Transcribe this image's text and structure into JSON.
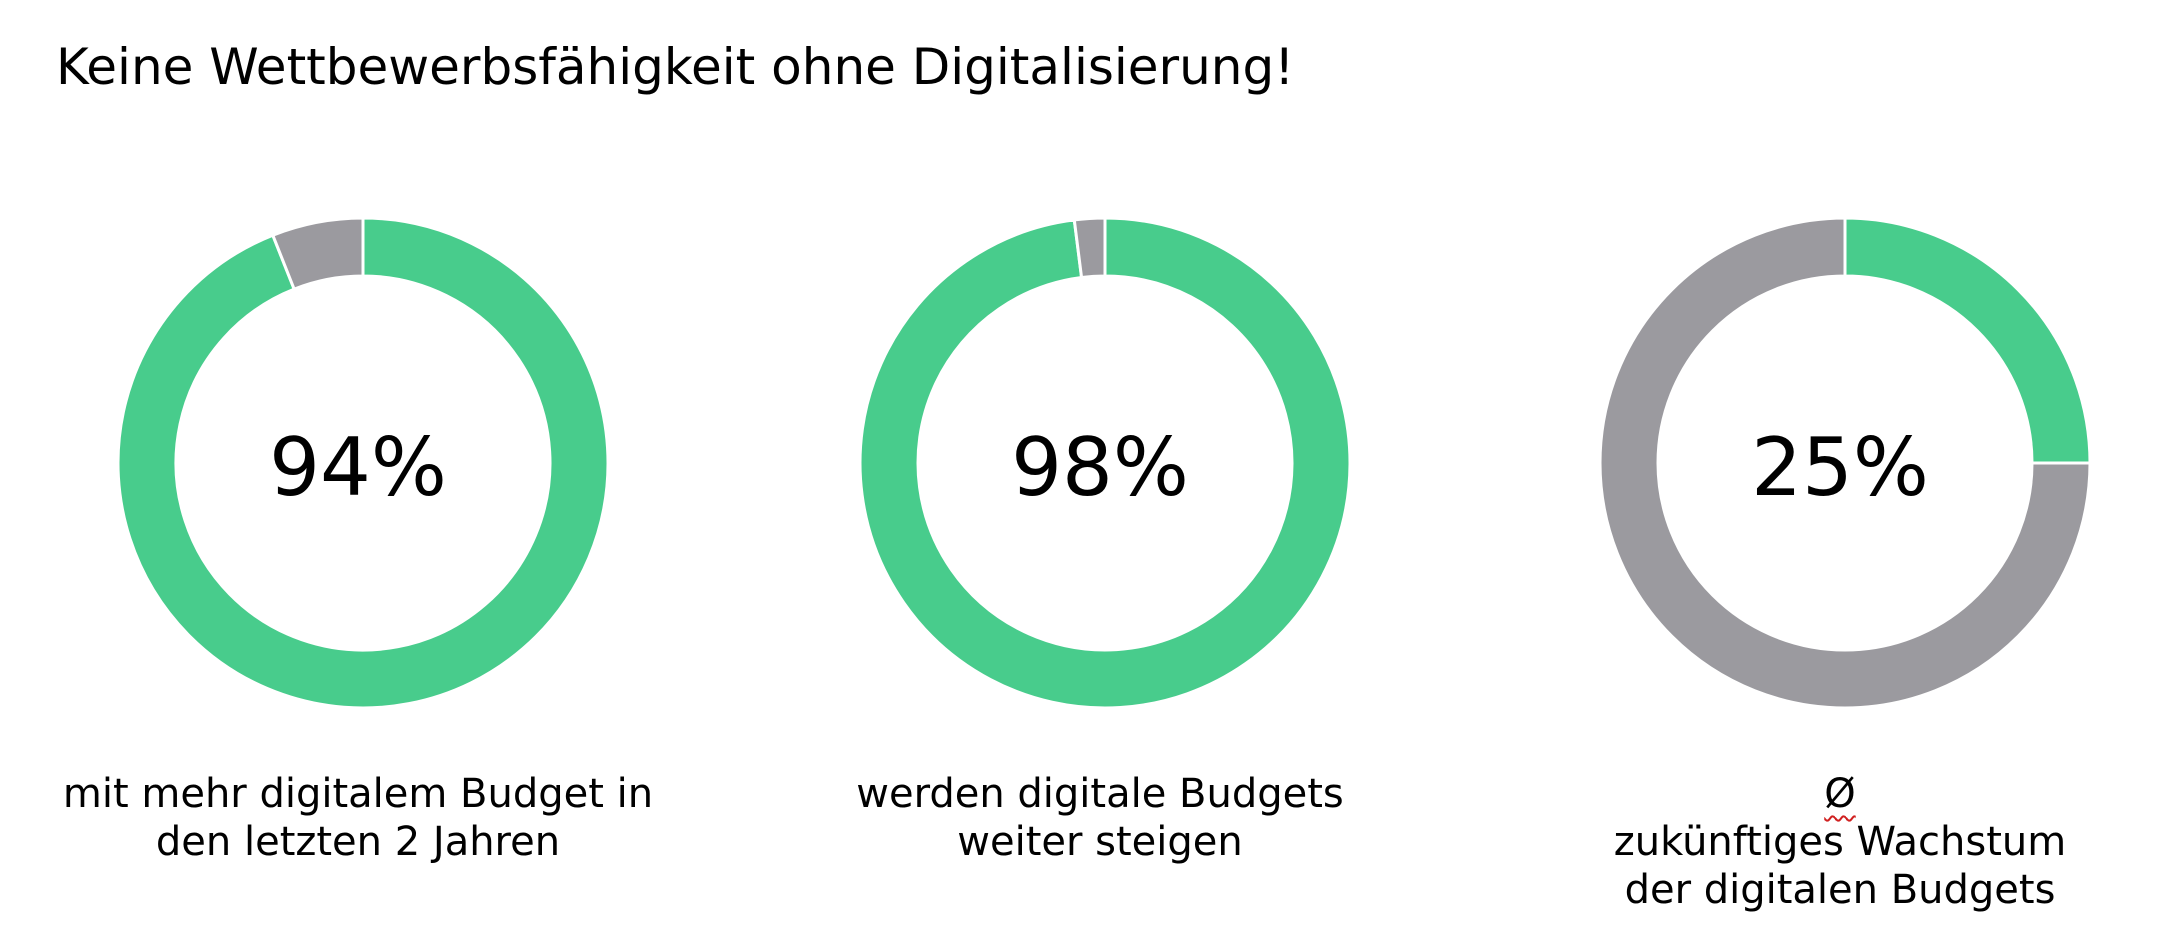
{
  "title": "Keine Wettbewerbsfähigkeit ohne Digitalisierung!",
  "colors": {
    "primary": "#48cc8c",
    "remainder": "#9b9a9f",
    "separator": "#ffffff"
  },
  "chart_data": [
    {
      "type": "pie",
      "variant": "donut",
      "center_label": "94%",
      "values": [
        94,
        6
      ],
      "caption_lines": [
        "mit mehr digitalem Budget in",
        "den letzten 2 Jahren"
      ]
    },
    {
      "type": "pie",
      "variant": "donut",
      "center_label": "98%",
      "values": [
        98,
        2
      ],
      "caption_lines": [
        "werden digitale Budgets",
        "weiter steigen"
      ]
    },
    {
      "type": "pie",
      "variant": "donut",
      "center_label": "25%",
      "values": [
        25,
        75
      ],
      "caption_prefix": "Ø",
      "caption_lines": [
        " zukünftiges Wachstum",
        "der digitalen Budgets"
      ]
    }
  ]
}
